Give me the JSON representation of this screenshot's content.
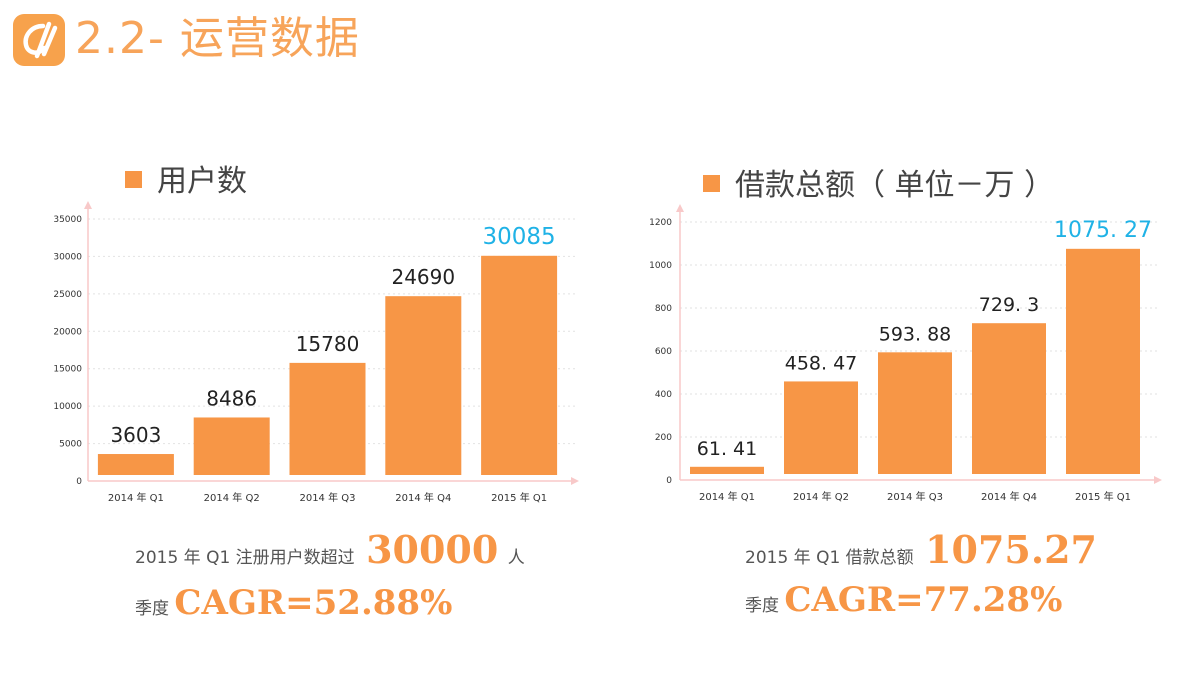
{
  "header": {
    "title": "2.2- 运营数据"
  },
  "colors": {
    "bar": "#f79646",
    "highlight": "#1fb2e6",
    "accent": "#f79646",
    "axis": "#f8c9c9"
  },
  "chart_data": [
    {
      "type": "bar",
      "title": "用户数",
      "legend": "用户数",
      "categories": [
        "2014 年 Q1",
        "2014 年 Q2",
        "2014 年 Q3",
        "2014 年 Q4",
        "2015 年 Q1"
      ],
      "values": [
        3603,
        8486,
        15780,
        24690,
        30085
      ],
      "value_labels": [
        "3603",
        "8486",
        "15780",
        "24690",
        "30085"
      ],
      "ylim": [
        0,
        35000
      ],
      "yticks": [
        0,
        5000,
        10000,
        15000,
        20000,
        25000,
        30000,
        35000
      ],
      "grid": true
    },
    {
      "type": "bar",
      "title": "借款总额（ 单位－万 ）",
      "legend": "借款总额（ 单位－万 ）",
      "categories": [
        "2014 年 Q1",
        "2014 年 Q2",
        "2014 年 Q3",
        "2014 年 Q4",
        "2015 年 Q1"
      ],
      "values": [
        61.41,
        458.47,
        593.88,
        729.3,
        1075.27
      ],
      "value_labels": [
        "61. 41",
        "458. 47",
        "593. 88",
        "729. 3",
        "1075. 27"
      ],
      "ylim": [
        0,
        1200
      ],
      "yticks": [
        0,
        200,
        400,
        600,
        800,
        1000,
        1200
      ],
      "grid": true
    }
  ],
  "summaries": {
    "left": {
      "prefix": "2015 年 Q1 注册用户数超过",
      "value": "30000",
      "suffix": "人",
      "cagr_label": "季度",
      "cagr": "CAGR=52.88%"
    },
    "right": {
      "prefix": "2015 年 Q1 借款总额",
      "value": "1075.27",
      "cagr_label": "季度",
      "cagr": "CAGR=77.28%"
    }
  }
}
